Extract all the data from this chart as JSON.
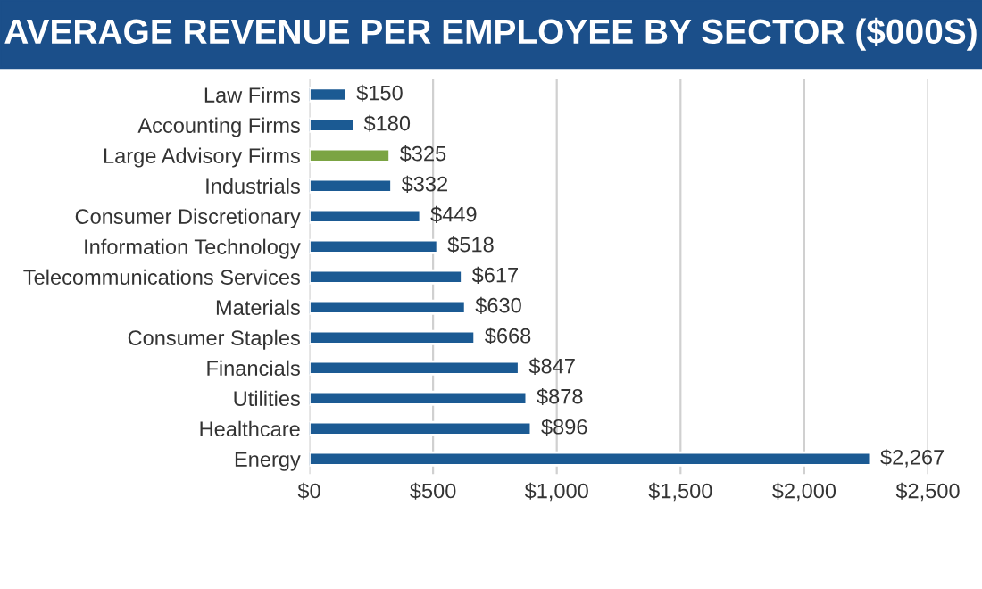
{
  "chart_data": {
    "type": "bar",
    "orientation": "horizontal",
    "title": "AVERAGE REVENUE PER EMPLOYEE BY SECTOR ($000S)",
    "categories": [
      "Law Firms",
      "Accounting Firms",
      "Large Advisory Firms",
      "Industrials",
      "Consumer Discretionary",
      "Information Technology",
      "Telecommunications Services",
      "Materials",
      "Consumer Staples",
      "Financials",
      "Utilities",
      "Healthcare",
      "Energy"
    ],
    "values": [
      150,
      180,
      325,
      332,
      449,
      518,
      617,
      630,
      668,
      847,
      878,
      896,
      2267
    ],
    "colors": [
      "#1b5a93",
      "#1b5a93",
      "#7ba443",
      "#1b5a93",
      "#1b5a93",
      "#1b5a93",
      "#1b5a93",
      "#1b5a93",
      "#1b5a93",
      "#1b5a93",
      "#1b5a93",
      "#1b5a93",
      "#1b5a93"
    ],
    "value_labels": [
      "$150",
      "$180",
      "$325",
      "$332",
      "$449",
      "$518",
      "$617",
      "$630",
      "$668",
      "$847",
      "$878",
      "$896",
      "$2,267"
    ],
    "xlim": [
      0,
      2500
    ],
    "xticks": [
      {
        "value": 0,
        "label": "$0"
      },
      {
        "value": 500,
        "label": "$500"
      },
      {
        "value": 1000,
        "label": "$1,000"
      },
      {
        "value": 1500,
        "label": "$1,500"
      },
      {
        "value": 2000,
        "label": "$2,000"
      },
      {
        "value": 2500,
        "label": "$2,500"
      }
    ],
    "grid": "x",
    "legend": false
  }
}
